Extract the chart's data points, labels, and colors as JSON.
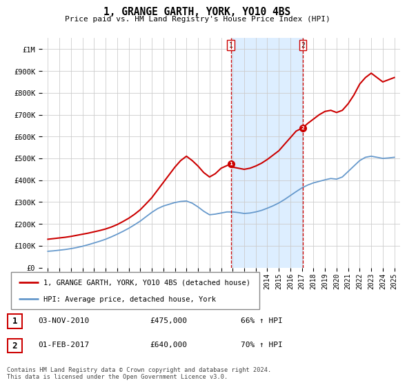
{
  "title": "1, GRANGE GARTH, YORK, YO10 4BS",
  "subtitle": "Price paid vs. HM Land Registry's House Price Index (HPI)",
  "legend_line1": "1, GRANGE GARTH, YORK, YO10 4BS (detached house)",
  "legend_line2": "HPI: Average price, detached house, York",
  "footer": "Contains HM Land Registry data © Crown copyright and database right 2024.\nThis data is licensed under the Open Government Licence v3.0.",
  "transactions": [
    {
      "num": 1,
      "date": "03-NOV-2010",
      "price": "£475,000",
      "hpi": "66% ↑ HPI",
      "x_year": 2010.84
    },
    {
      "num": 2,
      "date": "01-FEB-2017",
      "price": "£640,000",
      "hpi": "70% ↑ HPI",
      "x_year": 2017.08
    }
  ],
  "red_line_color": "#cc0000",
  "blue_line_color": "#6699cc",
  "shade_color": "#ddeeff",
  "vline_color": "#cc0000",
  "grid_color": "#cccccc",
  "background_color": "#ffffff",
  "ylim": [
    0,
    1050000
  ],
  "xlim_start": 1994.5,
  "xlim_end": 2025.5,
  "yticks": [
    0,
    100000,
    200000,
    300000,
    400000,
    500000,
    600000,
    700000,
    800000,
    900000,
    1000000
  ],
  "ytick_labels": [
    "£0",
    "£100K",
    "£200K",
    "£300K",
    "£400K",
    "£500K",
    "£600K",
    "£700K",
    "£800K",
    "£900K",
    "£1M"
  ],
  "xticks": [
    1995,
    1996,
    1997,
    1998,
    1999,
    2000,
    2001,
    2002,
    2003,
    2004,
    2005,
    2006,
    2007,
    2008,
    2009,
    2010,
    2011,
    2012,
    2013,
    2014,
    2015,
    2016,
    2017,
    2018,
    2019,
    2020,
    2021,
    2022,
    2023,
    2024,
    2025
  ],
  "red_x": [
    1995.0,
    1995.5,
    1996.0,
    1996.5,
    1997.0,
    1997.5,
    1998.0,
    1998.5,
    1999.0,
    1999.5,
    2000.0,
    2000.5,
    2001.0,
    2001.5,
    2002.0,
    2002.5,
    2003.0,
    2003.5,
    2004.0,
    2004.5,
    2005.0,
    2005.5,
    2006.0,
    2006.5,
    2007.0,
    2007.5,
    2008.0,
    2008.5,
    2009.0,
    2009.5,
    2010.0,
    2010.84,
    2011.0,
    2011.5,
    2012.0,
    2012.5,
    2013.0,
    2013.5,
    2014.0,
    2014.5,
    2015.0,
    2015.5,
    2016.0,
    2016.5,
    2017.08,
    2017.5,
    2018.0,
    2018.5,
    2019.0,
    2019.5,
    2020.0,
    2020.5,
    2021.0,
    2021.5,
    2022.0,
    2022.5,
    2023.0,
    2023.5,
    2024.0,
    2024.5,
    2025.0
  ],
  "red_y": [
    130000,
    133000,
    136000,
    139000,
    143000,
    148000,
    153000,
    158000,
    164000,
    170000,
    177000,
    186000,
    197000,
    211000,
    226000,
    244000,
    265000,
    292000,
    320000,
    355000,
    390000,
    425000,
    460000,
    490000,
    510000,
    490000,
    465000,
    435000,
    415000,
    430000,
    455000,
    475000,
    460000,
    455000,
    450000,
    455000,
    465000,
    478000,
    495000,
    515000,
    535000,
    565000,
    595000,
    625000,
    640000,
    660000,
    680000,
    700000,
    715000,
    720000,
    710000,
    720000,
    750000,
    790000,
    840000,
    870000,
    890000,
    870000,
    850000,
    860000,
    870000
  ],
  "blue_x": [
    1995.0,
    1995.5,
    1996.0,
    1996.5,
    1997.0,
    1997.5,
    1998.0,
    1998.5,
    1999.0,
    1999.5,
    2000.0,
    2000.5,
    2001.0,
    2001.5,
    2002.0,
    2002.5,
    2003.0,
    2003.5,
    2004.0,
    2004.5,
    2005.0,
    2005.5,
    2006.0,
    2006.5,
    2007.0,
    2007.5,
    2008.0,
    2008.5,
    2009.0,
    2009.5,
    2010.0,
    2010.5,
    2011.0,
    2011.5,
    2012.0,
    2012.5,
    2013.0,
    2013.5,
    2014.0,
    2014.5,
    2015.0,
    2015.5,
    2016.0,
    2016.5,
    2017.0,
    2017.5,
    2018.0,
    2018.5,
    2019.0,
    2019.5,
    2020.0,
    2020.5,
    2021.0,
    2021.5,
    2022.0,
    2022.5,
    2023.0,
    2023.5,
    2024.0,
    2024.5,
    2025.0
  ],
  "blue_y": [
    75000,
    77000,
    80000,
    83000,
    87000,
    92000,
    98000,
    105000,
    113000,
    121000,
    130000,
    141000,
    153000,
    166000,
    180000,
    196000,
    213000,
    233000,
    253000,
    270000,
    282000,
    290000,
    298000,
    303000,
    305000,
    295000,
    278000,
    258000,
    242000,
    245000,
    250000,
    255000,
    255000,
    252000,
    248000,
    250000,
    255000,
    262000,
    272000,
    283000,
    296000,
    312000,
    330000,
    348000,
    365000,
    378000,
    388000,
    395000,
    402000,
    408000,
    405000,
    415000,
    440000,
    465000,
    490000,
    505000,
    510000,
    505000,
    500000,
    502000,
    505000
  ],
  "marker_color": "#cc0000",
  "marker_size": 7
}
